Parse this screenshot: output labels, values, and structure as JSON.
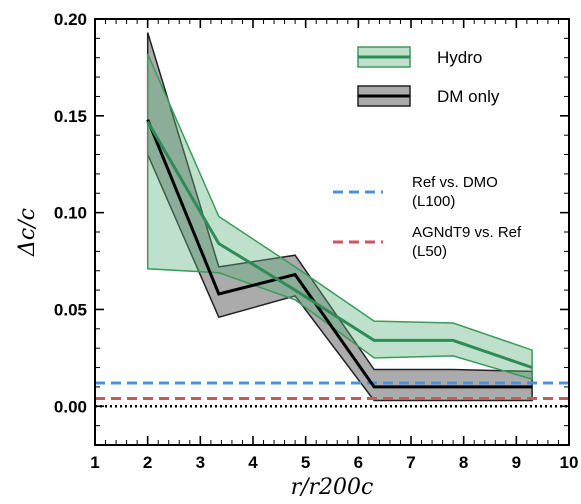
{
  "chart_data": {
    "type": "line",
    "xlabel": "r/r200c",
    "ylabel": "Δc/c",
    "xlim": [
      1,
      10
    ],
    "ylim": [
      -0.02,
      0.2
    ],
    "xticks": [
      "1",
      "2",
      "3",
      "4",
      "5",
      "6",
      "7",
      "8",
      "9",
      "10"
    ],
    "yticks": [
      "0.00",
      "0.05",
      "0.10",
      "0.15",
      "0.20"
    ],
    "x": [
      2.0,
      3.35,
      4.8,
      6.3,
      7.8,
      9.3
    ],
    "series": [
      {
        "name": "Hydro",
        "color": "#2e8b57",
        "values": [
          0.147,
          0.084,
          0.06,
          0.034,
          0.034,
          0.02
        ],
        "band_upper": [
          0.182,
          0.098,
          0.072,
          0.044,
          0.043,
          0.029
        ],
        "band_lower": [
          0.071,
          0.069,
          0.055,
          0.025,
          0.026,
          0.014
        ]
      },
      {
        "name": "DM only",
        "color": "#000000",
        "values": [
          0.148,
          0.058,
          0.068,
          0.01,
          0.01,
          0.01
        ],
        "band_upper": [
          0.193,
          0.072,
          0.078,
          0.019,
          0.019,
          0.018
        ],
        "band_lower": [
          0.13,
          0.046,
          0.057,
          0.003,
          0.003,
          0.003
        ]
      }
    ],
    "reference_lines": [
      {
        "label_line1": "Ref vs. DMO",
        "label_line2": "(L100)",
        "y": 0.012,
        "color": "#4a90e2",
        "style": "dashed"
      },
      {
        "label_line1": "AGNdT9 vs. Ref",
        "label_line2": "(L50)",
        "y": 0.004,
        "color": "#d0555a",
        "style": "dashed"
      },
      {
        "label_line1": "",
        "label_line2": "",
        "y": 0.0,
        "color": "#000000",
        "style": "dotted"
      }
    ],
    "legend_placement": "top-right"
  }
}
